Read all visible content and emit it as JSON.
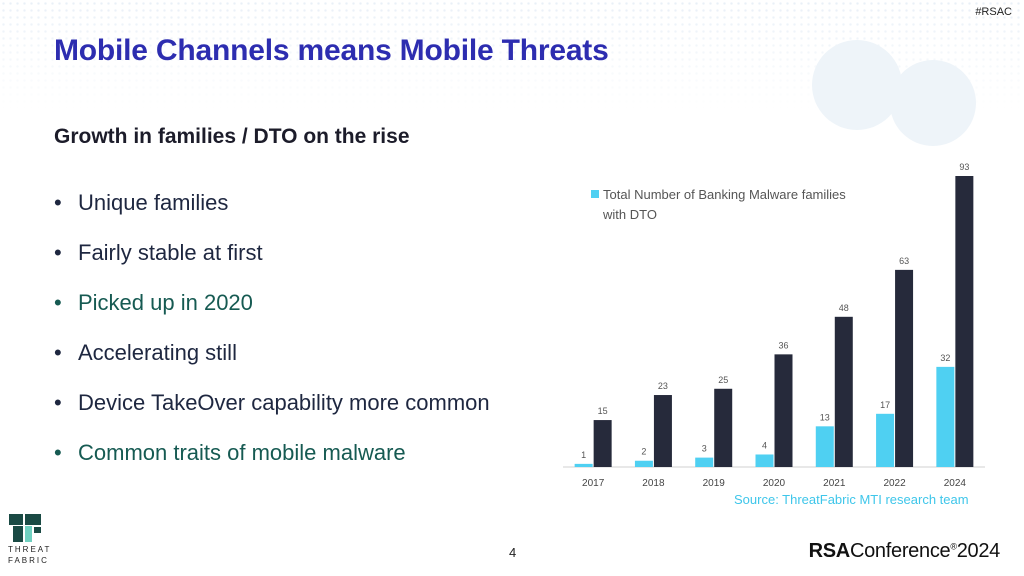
{
  "header": {
    "tag": "#RSAC",
    "title": "Mobile Channels means Mobile Threats"
  },
  "content": {
    "subtitle": "Growth in families / DTO on the rise",
    "bullets": [
      "Unique families",
      "Fairly stable at first",
      "Picked up in 2020",
      "Accelerating still",
      "Device TakeOver capability more common",
      "Common traits of mobile malware"
    ]
  },
  "chart_data": {
    "type": "bar",
    "categories": [
      "2017",
      "2018",
      "2019",
      "2020",
      "2021",
      "2022",
      "2024"
    ],
    "series": [
      {
        "name": "Total Number of Banking Malware families with DTO",
        "values": [
          1,
          2,
          3,
          4,
          13,
          17,
          32
        ],
        "color": "#4fd0f2"
      },
      {
        "name": "",
        "values": [
          15,
          23,
          25,
          36,
          48,
          63,
          93
        ],
        "color": "#262a3b"
      }
    ],
    "ylim": [
      0,
      93
    ],
    "grid": false,
    "legend_position": "top-left"
  },
  "source": "Source: ThreatFabric MTI research team",
  "footer": {
    "page_number": "4",
    "logo_left_line1": "THREAT",
    "logo_left_line2": "FABRIC",
    "brand_bold": "RSA",
    "brand_text": "Conference",
    "brand_year": "2024",
    "brand_mark": "®"
  },
  "colors": {
    "title": "#2d2db0",
    "accent": "#3ec6ea",
    "dark_bar": "#262a3b",
    "highlight_text": "#165a52"
  }
}
